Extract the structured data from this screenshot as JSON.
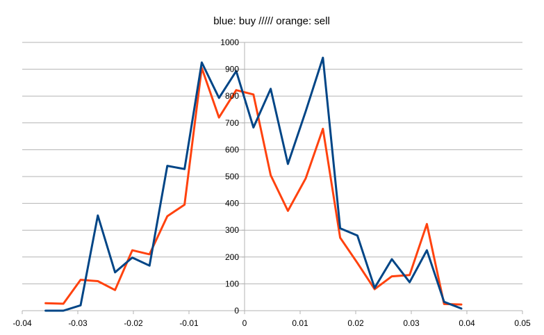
{
  "chart_data": {
    "type": "line",
    "title": "blue: buy ///// orange: sell",
    "xlabel": "",
    "ylabel": "",
    "xlim": [
      -0.04,
      0.05
    ],
    "ylim": [
      0,
      1000
    ],
    "x_ticks": [
      -0.04,
      -0.03,
      -0.02,
      -0.01,
      0,
      0.01,
      0.02,
      0.03,
      0.04,
      0.05
    ],
    "x_tick_labels": [
      "-0.04",
      "-0.03",
      "-0.02",
      "-0.01",
      "0",
      "0.01",
      "0.02",
      "0.03",
      "0.04",
      "0.05"
    ],
    "y_ticks": [
      0,
      100,
      200,
      300,
      400,
      500,
      600,
      700,
      800,
      900,
      1000
    ],
    "y_tick_labels": [
      "0",
      "100",
      "200",
      "300",
      "400",
      "500",
      "600",
      "700",
      "800",
      "900",
      "1000"
    ],
    "grid": "horizontal",
    "legend": "none",
    "series": [
      {
        "color": "#004586",
        "points": [
          [
            -0.0358,
            0
          ],
          [
            -0.0326,
            0
          ],
          [
            -0.0295,
            20
          ],
          [
            -0.0264,
            355
          ],
          [
            -0.0233,
            143
          ],
          [
            -0.0202,
            198
          ],
          [
            -0.0171,
            168
          ],
          [
            -0.0139,
            540
          ],
          [
            -0.0108,
            528
          ],
          [
            -0.0077,
            925
          ],
          [
            -0.0046,
            793
          ],
          [
            -0.0015,
            893
          ],
          [
            0.0016,
            683
          ],
          [
            0.0047,
            827
          ],
          [
            0.0078,
            547
          ],
          [
            0.011,
            743
          ],
          [
            0.0141,
            943
          ],
          [
            0.0172,
            307
          ],
          [
            0.0203,
            280
          ],
          [
            0.0234,
            85
          ],
          [
            0.0265,
            192
          ],
          [
            0.0297,
            106
          ],
          [
            0.0328,
            225
          ],
          [
            0.0359,
            33
          ],
          [
            0.039,
            8
          ]
        ]
      },
      {
        "color": "#ff420e",
        "points": [
          [
            -0.0358,
            28
          ],
          [
            -0.0326,
            26
          ],
          [
            -0.0295,
            115
          ],
          [
            -0.0264,
            110
          ],
          [
            -0.0233,
            77
          ],
          [
            -0.0202,
            225
          ],
          [
            -0.0171,
            210
          ],
          [
            -0.0139,
            352
          ],
          [
            -0.0108,
            395
          ],
          [
            -0.0077,
            905
          ],
          [
            -0.0046,
            720
          ],
          [
            -0.0015,
            822
          ],
          [
            0.0016,
            806
          ],
          [
            0.0047,
            505
          ],
          [
            0.0078,
            372
          ],
          [
            0.011,
            493
          ],
          [
            0.0141,
            678
          ],
          [
            0.0172,
            272
          ],
          [
            0.0203,
            178
          ],
          [
            0.0234,
            80
          ],
          [
            0.0265,
            128
          ],
          [
            0.0297,
            133
          ],
          [
            0.0328,
            323
          ],
          [
            0.0359,
            25
          ],
          [
            0.039,
            23
          ]
        ]
      }
    ]
  }
}
